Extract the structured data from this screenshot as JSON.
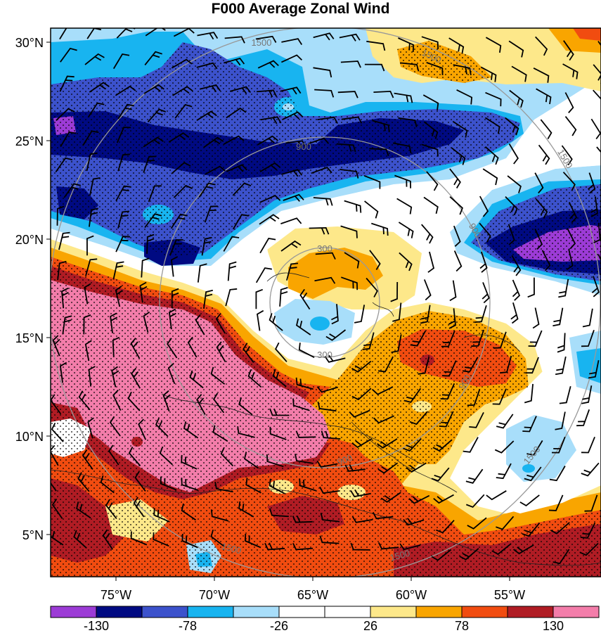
{
  "title": "F000 Average Zonal Wind",
  "lat_labels": [
    "30°N",
    "25°N",
    "20°N",
    "15°N",
    "10°N",
    "5°N"
  ],
  "lon_labels": [
    "75°W",
    "70°W",
    "65°W",
    "60°W",
    "55°W"
  ],
  "range_ring_labels": [
    "300",
    "300",
    "900",
    "900",
    "900",
    "900",
    "1500",
    "1500",
    "1500",
    "1500",
    "1500",
    "1500"
  ],
  "colorbar": {
    "colors": [
      "#9c3bd6",
      "#000a82",
      "#3c52cc",
      "#18b4f0",
      "#a8defa",
      "#ffffff",
      "#ffffff",
      "#fde88a",
      "#f9a500",
      "#f14c10",
      "#b01c24",
      "#f37daa"
    ],
    "tick_labels": [
      "-130",
      "-78",
      "-26",
      "26",
      "78",
      "130"
    ]
  },
  "palette": {
    "pink": "#f37daa",
    "darkred": "#b01c24",
    "red": "#f14c10",
    "orange": "#f9a500",
    "yellow": "#fde88a",
    "lightblue": "#a8defa",
    "cyan": "#18b4f0",
    "blue": "#3c52cc",
    "navy": "#000a82",
    "purple": "#9c3bd6"
  }
}
